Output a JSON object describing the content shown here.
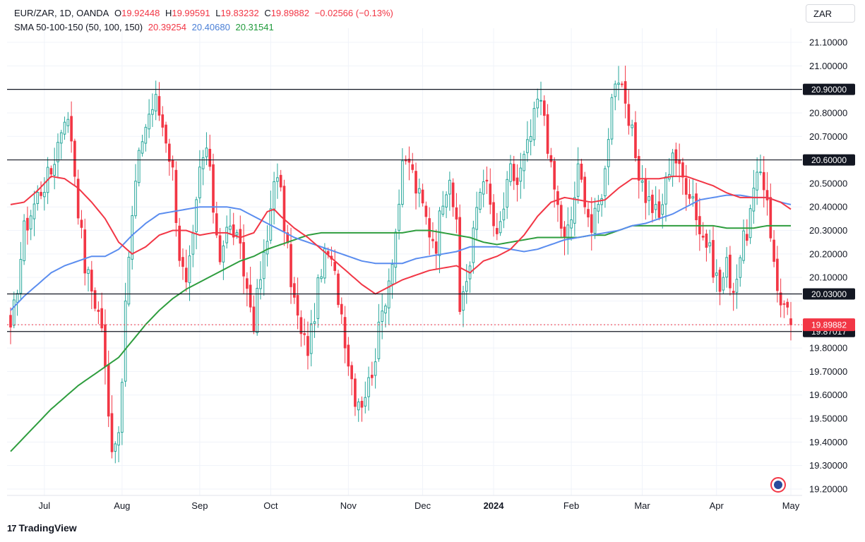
{
  "header": {
    "symbol": "EUR/ZAR, 1D, OANDA",
    "open_label": "O",
    "open": "19.92448",
    "high_label": "H",
    "high": "19.99591",
    "low_label": "L",
    "low": "19.83232",
    "close_label": "C",
    "close": "19.89882",
    "change": "−0.02566 (−0.13%)",
    "sma_title": "SMA 50-100-150 (50, 100, 150)",
    "sma50": "20.39254",
    "sma100": "20.40680",
    "sma150": "20.31541"
  },
  "currency": "ZAR",
  "brand": "TradingView",
  "colors": {
    "up": "#26a69a",
    "down": "#f23645",
    "sma50": "#f23645",
    "sma100": "#5b8def",
    "sma150": "#2e9d3e",
    "level_line": "#131722",
    "price_line": "#f23645"
  },
  "chart_data": {
    "type": "candlestick",
    "title": "EUR/ZAR, 1D, OANDA",
    "ylim": [
      19.15,
      21.17
    ],
    "y_ticks": [
      "21.10000",
      "21.00000",
      "20.90000",
      "20.80000",
      "20.70000",
      "20.60000",
      "20.50000",
      "20.40000",
      "20.30000",
      "20.20000",
      "20.10000",
      "20.00000",
      "19.90000",
      "19.80000",
      "19.70000",
      "19.60000",
      "19.50000",
      "19.40000",
      "19.30000",
      "19.20000"
    ],
    "x_ticks": [
      {
        "label": "Jul",
        "idx": 10
      },
      {
        "label": "Aug",
        "idx": 33
      },
      {
        "label": "Sep",
        "idx": 56
      },
      {
        "label": "Oct",
        "idx": 77
      },
      {
        "label": "Nov",
        "idx": 100
      },
      {
        "label": "Dec",
        "idx": 122
      },
      {
        "label": "2024",
        "idx": 143
      },
      {
        "label": "Feb",
        "idx": 166
      },
      {
        "label": "Mar",
        "idx": 187
      },
      {
        "label": "Apr",
        "idx": 209
      },
      {
        "label": "May",
        "idx": 231
      }
    ],
    "close_path": [
      [
        0,
        19.85
      ],
      [
        4,
        20.3
      ],
      [
        8,
        20.45
      ],
      [
        12,
        20.55
      ],
      [
        16,
        20.8
      ],
      [
        18,
        20.7
      ],
      [
        20,
        20.4
      ],
      [
        22,
        20.15
      ],
      [
        25,
        20.0
      ],
      [
        27,
        19.9
      ],
      [
        29,
        19.5
      ],
      [
        30,
        19.4
      ],
      [
        32,
        19.45
      ],
      [
        33,
        19.7
      ],
      [
        35,
        20.2
      ],
      [
        37,
        20.5
      ],
      [
        39,
        20.7
      ],
      [
        41,
        20.8
      ],
      [
        43,
        20.85
      ],
      [
        46,
        20.7
      ],
      [
        48,
        20.55
      ],
      [
        50,
        20.2
      ],
      [
        52,
        20.05
      ],
      [
        54,
        20.25
      ],
      [
        56,
        20.55
      ],
      [
        58,
        20.65
      ],
      [
        60,
        20.4
      ],
      [
        62,
        20.2
      ],
      [
        64,
        20.3
      ],
      [
        66,
        20.3
      ],
      [
        68,
        20.2
      ],
      [
        70,
        20.05
      ],
      [
        72,
        19.92
      ],
      [
        74,
        20.1
      ],
      [
        76,
        20.25
      ],
      [
        78,
        20.55
      ],
      [
        80,
        20.45
      ],
      [
        82,
        20.2
      ],
      [
        84,
        20.0
      ],
      [
        86,
        19.85
      ],
      [
        88,
        19.8
      ],
      [
        90,
        19.95
      ],
      [
        92,
        20.15
      ],
      [
        94,
        20.2
      ],
      [
        96,
        20.1
      ],
      [
        98,
        19.95
      ],
      [
        100,
        19.75
      ],
      [
        102,
        19.6
      ],
      [
        104,
        19.58
      ],
      [
        106,
        19.65
      ],
      [
        108,
        19.78
      ],
      [
        110,
        19.95
      ],
      [
        112,
        20.1
      ],
      [
        114,
        20.3
      ],
      [
        116,
        20.55
      ],
      [
        118,
        20.6
      ],
      [
        120,
        20.48
      ],
      [
        122,
        20.4
      ],
      [
        124,
        20.3
      ],
      [
        126,
        20.25
      ],
      [
        128,
        20.45
      ],
      [
        130,
        20.55
      ],
      [
        132,
        20.3
      ],
      [
        133,
        19.95
      ],
      [
        134,
        20.05
      ],
      [
        136,
        20.15
      ],
      [
        138,
        20.4
      ],
      [
        140,
        20.55
      ],
      [
        142,
        20.4
      ],
      [
        144,
        20.25
      ],
      [
        146,
        20.4
      ],
      [
        148,
        20.55
      ],
      [
        150,
        20.5
      ],
      [
        152,
        20.6
      ],
      [
        154,
        20.7
      ],
      [
        156,
        20.85
      ],
      [
        158,
        20.8
      ],
      [
        160,
        20.55
      ],
      [
        162,
        20.4
      ],
      [
        164,
        20.25
      ],
      [
        166,
        20.35
      ],
      [
        168,
        20.55
      ],
      [
        170,
        20.45
      ],
      [
        172,
        20.3
      ],
      [
        174,
        20.4
      ],
      [
        176,
        20.55
      ],
      [
        178,
        20.9
      ],
      [
        180,
        20.95
      ],
      [
        182,
        20.8
      ],
      [
        184,
        20.7
      ],
      [
        186,
        20.55
      ],
      [
        188,
        20.45
      ],
      [
        190,
        20.4
      ],
      [
        192,
        20.35
      ],
      [
        194,
        20.5
      ],
      [
        196,
        20.65
      ],
      [
        198,
        20.55
      ],
      [
        200,
        20.5
      ],
      [
        202,
        20.45
      ],
      [
        204,
        20.3
      ],
      [
        206,
        20.25
      ],
      [
        208,
        20.15
      ],
      [
        210,
        20.05
      ],
      [
        212,
        20.15
      ],
      [
        214,
        20.05
      ],
      [
        216,
        20.2
      ],
      [
        218,
        20.3
      ],
      [
        220,
        20.45
      ],
      [
        222,
        20.55
      ],
      [
        224,
        20.45
      ],
      [
        226,
        20.15
      ],
      [
        227,
        20.05
      ],
      [
        229,
        19.98
      ],
      [
        231,
        19.9
      ]
    ],
    "sma50_path": [
      [
        0,
        20.41
      ],
      [
        4,
        20.42
      ],
      [
        8,
        20.47
      ],
      [
        12,
        20.53
      ],
      [
        16,
        20.52
      ],
      [
        20,
        20.48
      ],
      [
        24,
        20.42
      ],
      [
        28,
        20.35
      ],
      [
        32,
        20.25
      ],
      [
        36,
        20.2
      ],
      [
        40,
        20.23
      ],
      [
        44,
        20.28
      ],
      [
        48,
        20.3
      ],
      [
        52,
        20.3
      ],
      [
        56,
        20.28
      ],
      [
        60,
        20.29
      ],
      [
        64,
        20.29
      ],
      [
        68,
        20.27
      ],
      [
        72,
        20.29
      ],
      [
        76,
        20.38
      ],
      [
        78,
        20.39
      ],
      [
        80,
        20.36
      ],
      [
        84,
        20.31
      ],
      [
        88,
        20.27
      ],
      [
        92,
        20.22
      ],
      [
        96,
        20.17
      ],
      [
        100,
        20.12
      ],
      [
        104,
        20.07
      ],
      [
        108,
        20.03
      ],
      [
        112,
        20.06
      ],
      [
        116,
        20.09
      ],
      [
        120,
        20.11
      ],
      [
        124,
        20.13
      ],
      [
        128,
        20.14
      ],
      [
        132,
        20.15
      ],
      [
        136,
        20.12
      ],
      [
        140,
        20.17
      ],
      [
        144,
        20.19
      ],
      [
        148,
        20.22
      ],
      [
        152,
        20.28
      ],
      [
        156,
        20.36
      ],
      [
        160,
        20.42
      ],
      [
        164,
        20.44
      ],
      [
        168,
        20.43
      ],
      [
        172,
        20.42
      ],
      [
        176,
        20.43
      ],
      [
        180,
        20.48
      ],
      [
        184,
        20.52
      ],
      [
        188,
        20.52
      ],
      [
        192,
        20.52
      ],
      [
        196,
        20.53
      ],
      [
        200,
        20.53
      ],
      [
        204,
        20.51
      ],
      [
        208,
        20.49
      ],
      [
        212,
        20.46
      ],
      [
        216,
        20.44
      ],
      [
        220,
        20.44
      ],
      [
        224,
        20.44
      ],
      [
        228,
        20.42
      ],
      [
        231,
        20.39
      ]
    ],
    "sma100_path": [
      [
        0,
        19.96
      ],
      [
        4,
        20.02
      ],
      [
        8,
        20.07
      ],
      [
        12,
        20.12
      ],
      [
        16,
        20.15
      ],
      [
        20,
        20.17
      ],
      [
        24,
        20.19
      ],
      [
        28,
        20.19
      ],
      [
        32,
        20.22
      ],
      [
        36,
        20.28
      ],
      [
        40,
        20.33
      ],
      [
        44,
        20.37
      ],
      [
        48,
        20.38
      ],
      [
        52,
        20.39
      ],
      [
        56,
        20.4
      ],
      [
        60,
        20.4
      ],
      [
        64,
        20.4
      ],
      [
        68,
        20.39
      ],
      [
        72,
        20.36
      ],
      [
        76,
        20.33
      ],
      [
        80,
        20.3
      ],
      [
        84,
        20.27
      ],
      [
        88,
        20.25
      ],
      [
        92,
        20.23
      ],
      [
        96,
        20.21
      ],
      [
        100,
        20.19
      ],
      [
        104,
        20.17
      ],
      [
        108,
        20.16
      ],
      [
        112,
        20.16
      ],
      [
        116,
        20.16
      ],
      [
        120,
        20.18
      ],
      [
        124,
        20.19
      ],
      [
        128,
        20.2
      ],
      [
        132,
        20.21
      ],
      [
        136,
        20.23
      ],
      [
        140,
        20.23
      ],
      [
        144,
        20.23
      ],
      [
        148,
        20.22
      ],
      [
        152,
        20.21
      ],
      [
        156,
        20.22
      ],
      [
        160,
        20.24
      ],
      [
        164,
        20.26
      ],
      [
        168,
        20.27
      ],
      [
        172,
        20.28
      ],
      [
        176,
        20.29
      ],
      [
        180,
        20.3
      ],
      [
        184,
        20.32
      ],
      [
        188,
        20.33
      ],
      [
        192,
        20.35
      ],
      [
        196,
        20.37
      ],
      [
        200,
        20.4
      ],
      [
        204,
        20.43
      ],
      [
        208,
        20.44
      ],
      [
        212,
        20.45
      ],
      [
        216,
        20.45
      ],
      [
        220,
        20.44
      ],
      [
        224,
        20.44
      ],
      [
        228,
        20.42
      ],
      [
        231,
        20.41
      ]
    ],
    "sma150_path": [
      [
        0,
        19.36
      ],
      [
        4,
        19.42
      ],
      [
        8,
        19.48
      ],
      [
        12,
        19.54
      ],
      [
        16,
        19.59
      ],
      [
        20,
        19.64
      ],
      [
        24,
        19.68
      ],
      [
        28,
        19.72
      ],
      [
        32,
        19.76
      ],
      [
        36,
        19.83
      ],
      [
        40,
        19.9
      ],
      [
        44,
        19.96
      ],
      [
        48,
        20.01
      ],
      [
        52,
        20.05
      ],
      [
        56,
        20.08
      ],
      [
        60,
        20.11
      ],
      [
        64,
        20.14
      ],
      [
        68,
        20.17
      ],
      [
        72,
        20.19
      ],
      [
        76,
        20.22
      ],
      [
        80,
        20.24
      ],
      [
        84,
        20.26
      ],
      [
        88,
        20.28
      ],
      [
        92,
        20.29
      ],
      [
        96,
        20.29
      ],
      [
        100,
        20.29
      ],
      [
        104,
        20.29
      ],
      [
        108,
        20.29
      ],
      [
        112,
        20.29
      ],
      [
        116,
        20.29
      ],
      [
        120,
        20.3
      ],
      [
        124,
        20.3
      ],
      [
        128,
        20.29
      ],
      [
        132,
        20.28
      ],
      [
        136,
        20.27
      ],
      [
        140,
        20.25
      ],
      [
        144,
        20.24
      ],
      [
        148,
        20.25
      ],
      [
        152,
        20.26
      ],
      [
        156,
        20.27
      ],
      [
        160,
        20.27
      ],
      [
        164,
        20.27
      ],
      [
        168,
        20.27
      ],
      [
        172,
        20.28
      ],
      [
        176,
        20.28
      ],
      [
        180,
        20.3
      ],
      [
        184,
        20.32
      ],
      [
        188,
        20.32
      ],
      [
        192,
        20.32
      ],
      [
        196,
        20.32
      ],
      [
        200,
        20.32
      ],
      [
        204,
        20.32
      ],
      [
        208,
        20.32
      ],
      [
        212,
        20.31
      ],
      [
        216,
        20.31
      ],
      [
        220,
        20.31
      ],
      [
        224,
        20.32
      ],
      [
        228,
        20.32
      ],
      [
        231,
        20.32
      ]
    ],
    "horizontal_levels": [
      {
        "value": 20.9,
        "label": "20.90000"
      },
      {
        "value": 20.6,
        "label": "20.60000"
      },
      {
        "value": 20.03,
        "label": "20.03000"
      },
      {
        "value": 19.87017,
        "label": "19.87017"
      }
    ],
    "last_price": {
      "value": 19.89882,
      "label": "19.89882"
    },
    "grid": true,
    "legend": "top-left"
  }
}
